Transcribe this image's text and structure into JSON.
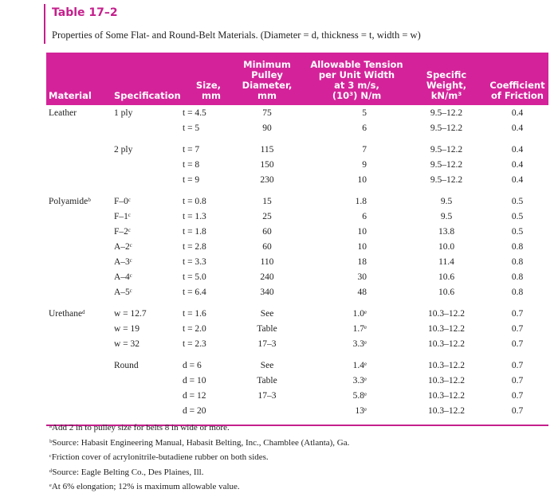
{
  "table_label": "Table 17–2",
  "caption": "Properties of Some Flat- and Round-Belt Materials. (Diameter = d, thickness = t, width = w)",
  "table": {
    "headers": [
      [
        "Material"
      ],
      [
        "Specification"
      ],
      [
        "Size,",
        "mm"
      ],
      [
        "Minimum",
        "Pulley",
        "Diameter,",
        "mm"
      ],
      [
        "Allowable Tension",
        "per Unit Width",
        "at 3 m/s,",
        "(10³) N/m"
      ],
      [
        "Specific",
        "Weight,",
        "kN/m³"
      ],
      [
        "Coefficient",
        "of Friction"
      ]
    ],
    "groups": [
      {
        "rows": [
          [
            "Leather",
            "1 ply",
            "t = 4.5",
            "75",
            "5",
            "9.5–12.2",
            "0.4"
          ],
          [
            null,
            null,
            "t = 5",
            "90",
            "6",
            "9.5–12.2",
            "0.4"
          ]
        ]
      },
      {
        "rows": [
          [
            null,
            "2 ply",
            "t = 7",
            "115",
            "7",
            "9.5–12.2",
            "0.4"
          ],
          [
            null,
            null,
            "t = 8",
            "150",
            "9",
            "9.5–12.2",
            "0.4"
          ],
          [
            null,
            null,
            "t = 9",
            "230",
            "10",
            "9.5–12.2",
            "0.4"
          ]
        ]
      },
      {
        "rows": [
          [
            "Polyamideᵇ",
            "F–0ᶜ",
            "t = 0.8",
            "15",
            "1.8",
            "9.5",
            "0.5"
          ],
          [
            null,
            "F–1ᶜ",
            "t = 1.3",
            "25",
            "6",
            "9.5",
            "0.5"
          ],
          [
            null,
            "F–2ᶜ",
            "t = 1.8",
            "60",
            "10",
            "13.8",
            "0.5"
          ],
          [
            null,
            "A–2ᶜ",
            "t = 2.8",
            "60",
            "10",
            "10.0",
            "0.8"
          ],
          [
            null,
            "A–3ᶜ",
            "t = 3.3",
            "110",
            "18",
            "11.4",
            "0.8"
          ],
          [
            null,
            "A–4ᶜ",
            "t = 5.0",
            "240",
            "30",
            "10.6",
            "0.8"
          ],
          [
            null,
            "A–5ᶜ",
            "t = 6.4",
            "340",
            "48",
            "10.6",
            "0.8"
          ]
        ]
      },
      {
        "rows": [
          [
            "Urethaneᵈ",
            "w = 12.7",
            "t = 1.6",
            "See",
            "1.0ᵉ",
            "10.3–12.2",
            "0.7"
          ],
          [
            null,
            "w = 19",
            "t = 2.0",
            "Table",
            "1.7ᵉ",
            "10.3–12.2",
            "0.7"
          ],
          [
            null,
            "w = 32",
            "t = 2.3",
            "17–3",
            "3.3ᵉ",
            "10.3–12.2",
            "0.7"
          ]
        ]
      },
      {
        "rows": [
          [
            null,
            "Round",
            "d = 6",
            "See",
            "1.4ᵉ",
            "10.3–12.2",
            "0.7"
          ],
          [
            null,
            null,
            "d = 10",
            "Table",
            "3.3ᵉ",
            "10.3–12.2",
            "0.7"
          ],
          [
            null,
            null,
            "d = 12",
            "17–3",
            "5.8ᵉ",
            "10.3–12.2",
            "0.7"
          ],
          [
            null,
            null,
            "d = 20",
            null,
            "13ᵉ",
            "10.3–12.2",
            "0.7"
          ]
        ]
      }
    ]
  },
  "footnotes": [
    "ᵃAdd 2 in to pulley size for belts 8 in wide or more.",
    "ᵇSource: Habasit Engineering Manual, Habasit Belting, Inc., Chamblee (Atlanta), Ga.",
    "ᶜFriction cover of acrylonitrile-butadiene rubber on both sides.",
    "ᵈSource: Eagle Belting Co., Des Plaines, Ill.",
    "ᵉAt 6% elongation; 12% is maximum allowable value."
  ]
}
